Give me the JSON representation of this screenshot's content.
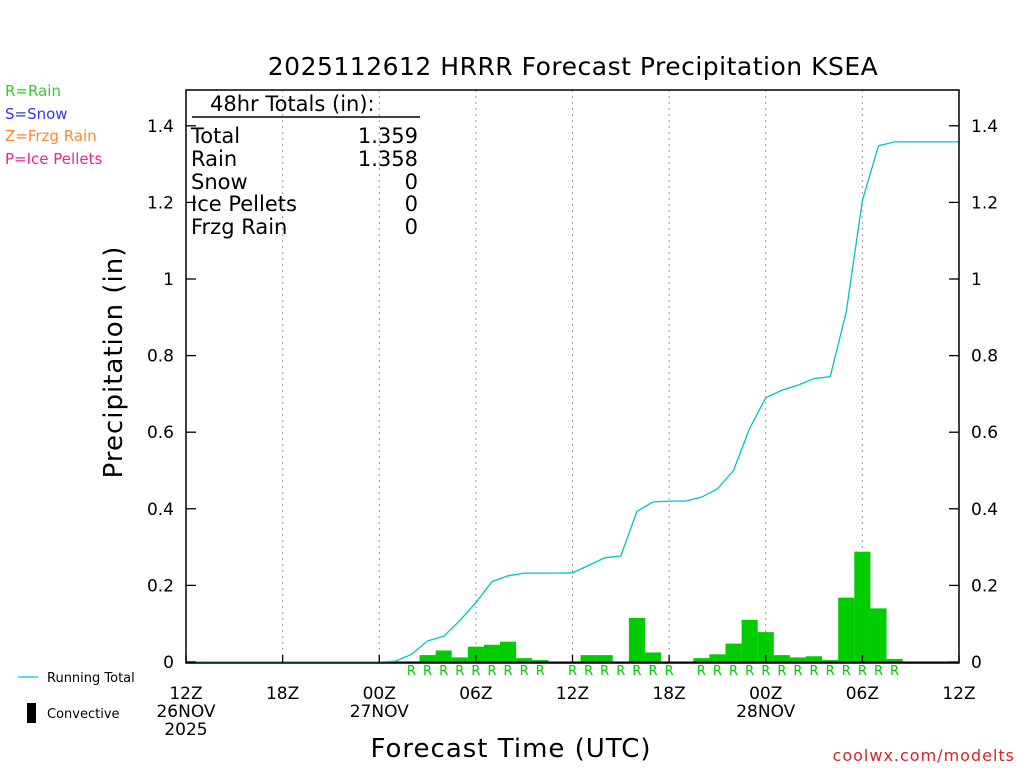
{
  "chart_data": {
    "type": "bar",
    "title": "2025112612 HRRR Forecast Precipitation KSEA",
    "xlabel": "Forecast Time (UTC)",
    "ylabel": "Precipitation (in)",
    "ylim": [
      0,
      1.5
    ],
    "yticks": [
      0,
      0.2,
      0.4,
      0.6,
      0.8,
      1,
      1.2,
      1.4
    ],
    "ytick_labels": [
      "0",
      "0.2",
      "0.4",
      "0.6",
      "0.8",
      "1",
      "1.2",
      "1.4"
    ],
    "xlim_hours": [
      0,
      48
    ],
    "xticks": [
      {
        "hour": 0,
        "line1": "12Z",
        "line2": "26NOV",
        "line3": "2025"
      },
      {
        "hour": 6,
        "line1": "18Z",
        "line2": "",
        "line3": ""
      },
      {
        "hour": 12,
        "line1": "00Z",
        "line2": "27NOV",
        "line3": ""
      },
      {
        "hour": 18,
        "line1": "06Z",
        "line2": "",
        "line3": ""
      },
      {
        "hour": 24,
        "line1": "12Z",
        "line2": "",
        "line3": ""
      },
      {
        "hour": 30,
        "line1": "18Z",
        "line2": "",
        "line3": ""
      },
      {
        "hour": 36,
        "line1": "00Z",
        "line2": "28NOV",
        "line3": ""
      },
      {
        "hour": 42,
        "line1": "06Z",
        "line2": "",
        "line3": ""
      },
      {
        "hour": 48,
        "line1": "12Z",
        "line2": "",
        "line3": ""
      }
    ],
    "gridlines_hours": [
      6,
      12,
      18,
      24,
      30,
      36,
      42
    ],
    "hourly_precip": {
      "name": "Hourly Precipitation",
      "color": "#00cc00",
      "hours": [
        15,
        16,
        17,
        18,
        19,
        20,
        21,
        22,
        23,
        24,
        25,
        26,
        27,
        28,
        29,
        30,
        31,
        32,
        33,
        34,
        35,
        36,
        37,
        38,
        39,
        40,
        41,
        42,
        43,
        44
      ],
      "values": [
        0.018,
        0.03,
        0.012,
        0.04,
        0.045,
        0.053,
        0.01,
        0.005,
        0,
        0,
        0.018,
        0.018,
        0,
        0.115,
        0.025,
        0,
        0,
        0.01,
        0.02,
        0.048,
        0.11,
        0.078,
        0.018,
        0.012,
        0.015,
        0.005,
        0.168,
        0.288,
        0.14,
        0.008
      ]
    },
    "running_total": {
      "name": "Running Total",
      "color": "#00c4c4",
      "hours": [
        0,
        12,
        13,
        14,
        15,
        16,
        17,
        18,
        19,
        20,
        21,
        22,
        23,
        24,
        25,
        26,
        27,
        28,
        29,
        30,
        31,
        32,
        33,
        34,
        35,
        36,
        37,
        38,
        39,
        40,
        41,
        42,
        43,
        44,
        45,
        46,
        47,
        48
      ],
      "values": [
        0,
        0,
        0.002,
        0.02,
        0.055,
        0.067,
        0.108,
        0.155,
        0.21,
        0.225,
        0.232,
        0.232,
        0.232,
        0.233,
        0.252,
        0.272,
        0.277,
        0.393,
        0.418,
        0.42,
        0.42,
        0.43,
        0.452,
        0.5,
        0.61,
        0.69,
        0.71,
        0.723,
        0.74,
        0.745,
        0.915,
        1.205,
        1.348,
        1.358,
        1.358,
        1.358,
        1.358,
        1.358
      ]
    },
    "ptype_markers": {
      "label": "R",
      "hours": [
        14,
        15,
        16,
        17,
        18,
        19,
        20,
        21,
        22,
        24,
        25,
        26,
        27,
        28,
        29,
        30,
        32,
        33,
        34,
        35,
        36,
        37,
        38,
        39,
        40,
        41,
        42,
        43,
        44
      ]
    },
    "totals_box": {
      "heading": "48hr Totals (in):",
      "rows": [
        {
          "label": "Total",
          "value": "1.359"
        },
        {
          "label": "Rain",
          "value": "1.358"
        },
        {
          "label": "Snow",
          "value": "0"
        },
        {
          "label": "Ice Pellets",
          "value": "0"
        },
        {
          "label": "Frzg Rain",
          "value": "0"
        }
      ]
    },
    "ptype_legend": [
      {
        "text": "R=Rain",
        "color": "#33cc33"
      },
      {
        "text": "S=Snow",
        "color": "#3333ff"
      },
      {
        "text": "Z=Frzg Rain",
        "color": "#ff8833"
      },
      {
        "text": "P=Ice Pellets",
        "color": "#ee2299"
      }
    ],
    "series_legend": [
      {
        "text": "Running Total",
        "color": "#00c4c4"
      },
      {
        "text": "Convective",
        "color": "#000000"
      }
    ],
    "credit": "coolwx.com/modelts"
  }
}
